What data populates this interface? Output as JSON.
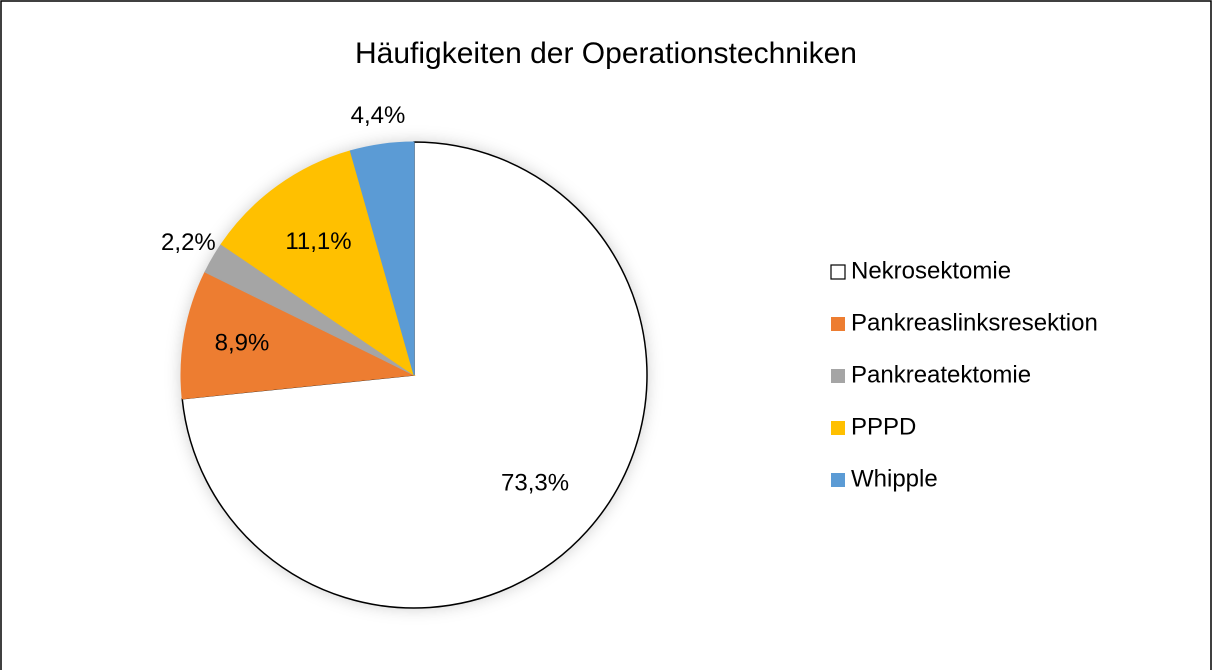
{
  "chart_data": {
    "type": "pie",
    "title": "Häufigkeiten der Operationstechniken",
    "categories": [
      "Nekrosektomie",
      "Pankreaslinksresektion",
      "Pankreatektomie",
      "PPPD",
      "Whipple"
    ],
    "values": [
      73.3,
      8.9,
      2.2,
      11.1,
      4.4
    ],
    "value_labels": [
      "73,3%",
      "8,9%",
      "2,2%",
      "11,1%",
      "4,4%"
    ],
    "colors": [
      "#ffffff",
      "#ed7d31",
      "#a5a5a5",
      "#ffc000",
      "#5b9bd5"
    ],
    "legend": "right"
  }
}
